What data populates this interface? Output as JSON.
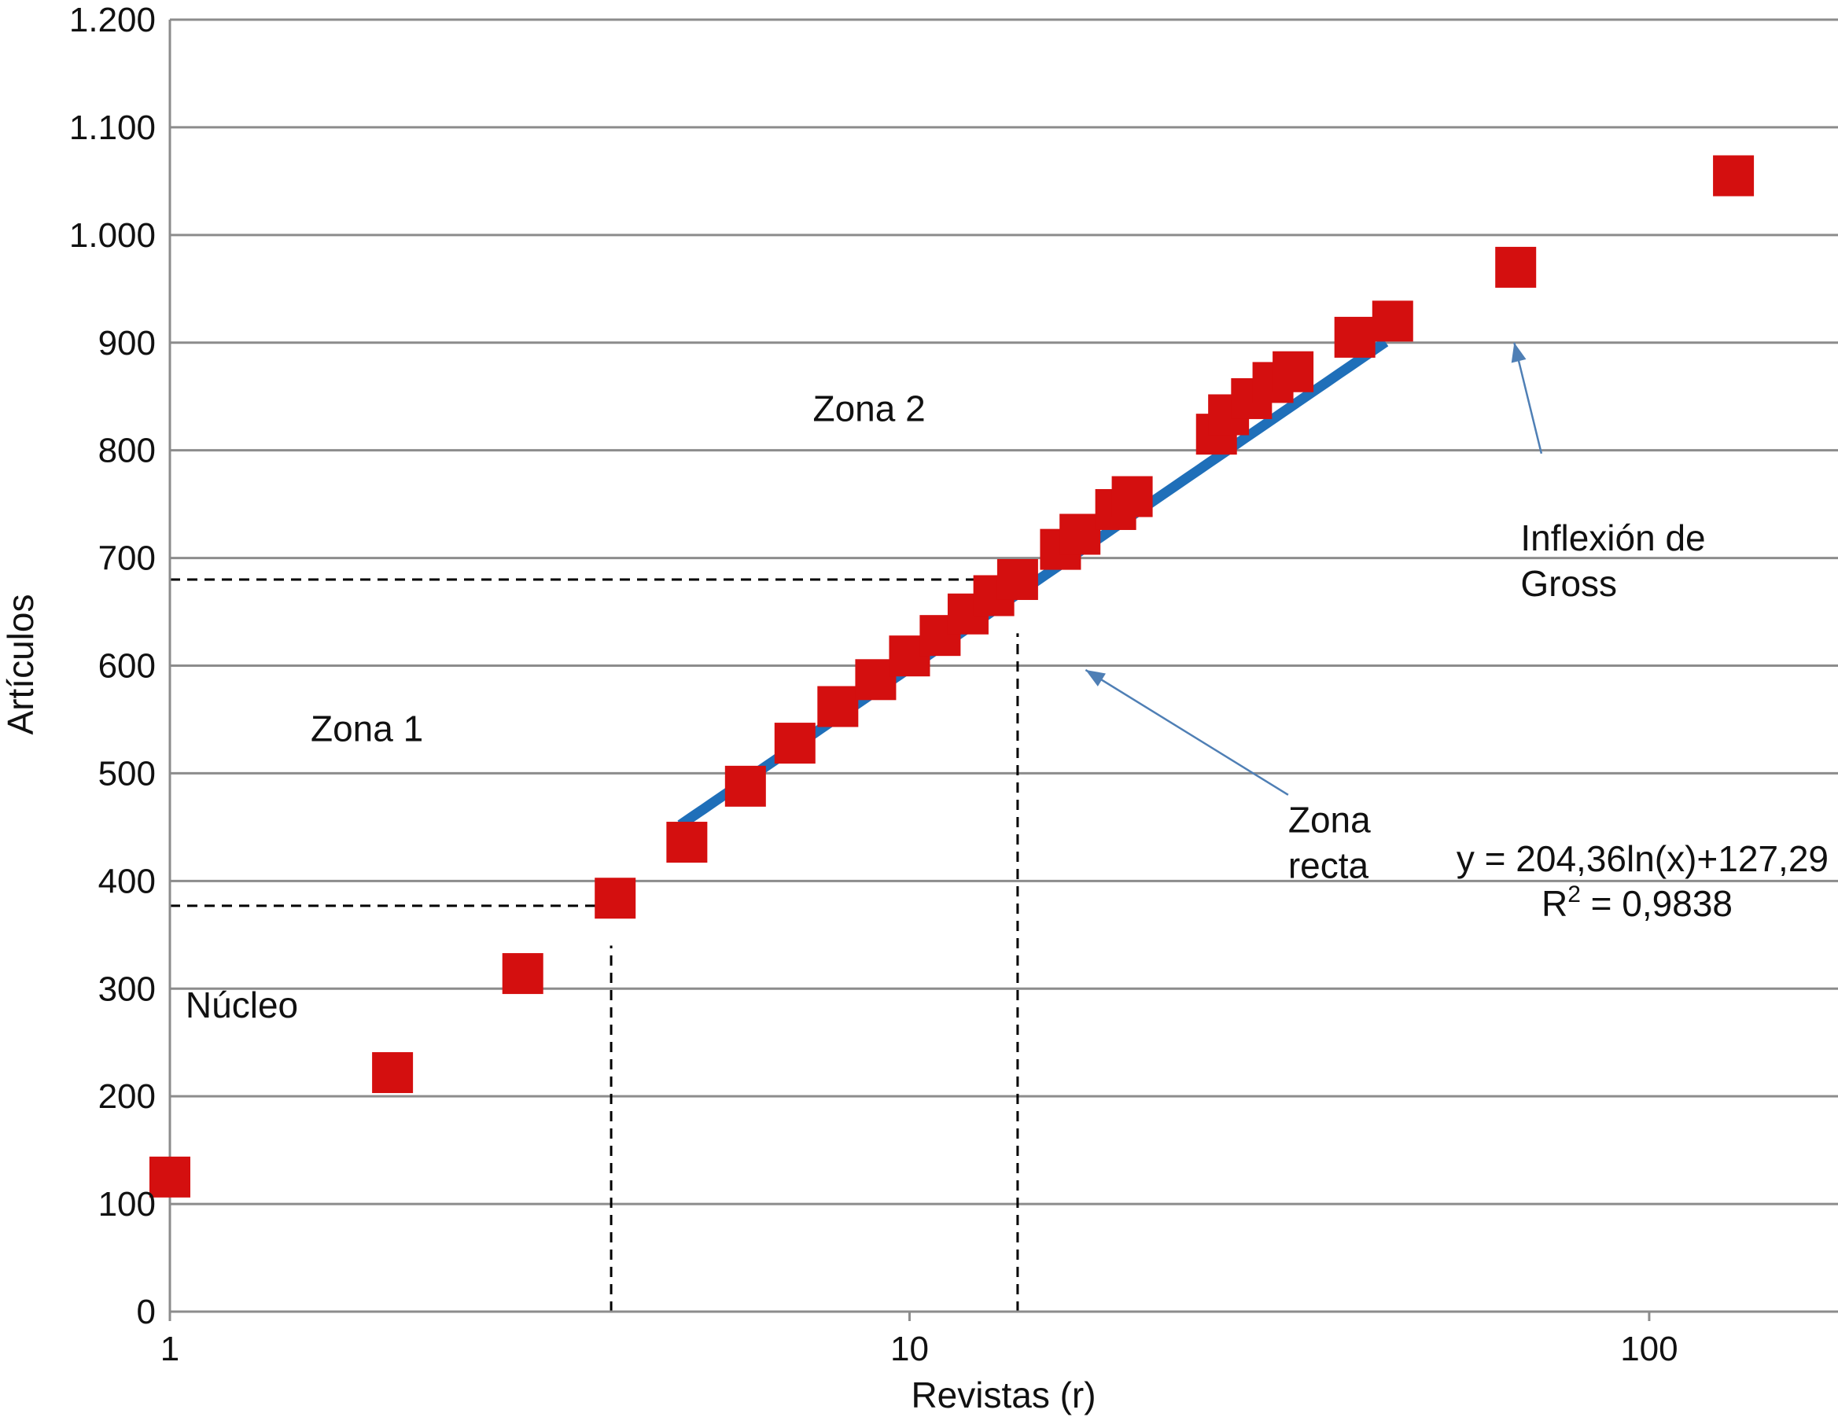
{
  "chart_data": {
    "type": "scatter",
    "title": "",
    "xlabel": "Revistas (r)",
    "ylabel": "Artículos",
    "x_scale": "log",
    "xlim": [
      1,
      180
    ],
    "ylim": [
      0,
      1200
    ],
    "x_ticks": [
      {
        "value": 1,
        "label": "1"
      },
      {
        "value": 10,
        "label": "10"
      },
      {
        "value": 100,
        "label": "100"
      }
    ],
    "y_ticks": [
      {
        "value": 0,
        "label": "0"
      },
      {
        "value": 100,
        "label": "100"
      },
      {
        "value": 200,
        "label": "200"
      },
      {
        "value": 300,
        "label": "300"
      },
      {
        "value": 400,
        "label": "400"
      },
      {
        "value": 500,
        "label": "500"
      },
      {
        "value": 600,
        "label": "600"
      },
      {
        "value": 700,
        "label": "700"
      },
      {
        "value": 800,
        "label": "800"
      },
      {
        "value": 900,
        "label": "900"
      },
      {
        "value": 1000,
        "label": "1.000"
      },
      {
        "value": 1100,
        "label": "1.100"
      },
      {
        "value": 1200,
        "label": "1.200"
      }
    ],
    "grid": {
      "horizontal": true,
      "vertical": false
    },
    "colors": {
      "points": "#d40f0f",
      "trend": "#1f6fb9",
      "arrows": "#4f7fb5",
      "grid": "#8c8c8c",
      "guides": "#000000"
    },
    "points": [
      {
        "x": 1,
        "y": 125
      },
      {
        "x": 2,
        "y": 222
      },
      {
        "x": 3,
        "y": 314
      },
      {
        "x": 4,
        "y": 384
      },
      {
        "x": 5,
        "y": 436
      },
      {
        "x": 6,
        "y": 488
      },
      {
        "x": 7,
        "y": 528
      },
      {
        "x": 8,
        "y": 562
      },
      {
        "x": 9,
        "y": 587
      },
      {
        "x": 10,
        "y": 609
      },
      {
        "x": 11,
        "y": 628
      },
      {
        "x": 12,
        "y": 648
      },
      {
        "x": 13,
        "y": 665
      },
      {
        "x": 14,
        "y": 680
      },
      {
        "x": 16,
        "y": 708
      },
      {
        "x": 17,
        "y": 722
      },
      {
        "x": 19,
        "y": 745
      },
      {
        "x": 20,
        "y": 757
      },
      {
        "x": 26,
        "y": 815
      },
      {
        "x": 27,
        "y": 833
      },
      {
        "x": 29,
        "y": 848
      },
      {
        "x": 31,
        "y": 863
      },
      {
        "x": 33,
        "y": 873
      },
      {
        "x": 40,
        "y": 905
      },
      {
        "x": 45,
        "y": 920
      },
      {
        "x": 66,
        "y": 970
      },
      {
        "x": 130,
        "y": 1055
      }
    ],
    "trendline": {
      "type": "logarithmic",
      "a": 204.36,
      "b": 127.29,
      "x_range": [
        4.9,
        44
      ],
      "equation": "y = 204,36ln(x)+127,29",
      "r2_label": "R",
      "r2_sup": "2",
      "r2_value": " = 0,9838"
    },
    "guide_lines": [
      {
        "orientation": "horizontal",
        "value": 377,
        "x_from": 1,
        "x_to": 3.9
      },
      {
        "orientation": "vertical",
        "value": 3.95,
        "y_from": 0,
        "y_to": 340
      },
      {
        "orientation": "horizontal",
        "value": 680,
        "x_from": 1,
        "x_to": 12.5
      },
      {
        "orientation": "vertical",
        "value": 14,
        "y_from": 0,
        "y_to": 630
      }
    ],
    "annotations": [
      {
        "id": "nucleo",
        "lines": [
          "Núcleo"
        ],
        "x": 1.05,
        "y": 273
      },
      {
        "id": "zona-1",
        "lines": [
          "Zona 1"
        ],
        "x": 1.55,
        "y": 530
      },
      {
        "id": "zona-2",
        "lines": [
          "Zona 2"
        ],
        "x": 7.4,
        "y": 827
      },
      {
        "id": "zona-recta",
        "lines": [
          "Zona",
          "recta"
        ],
        "x": 32.5,
        "y": 445,
        "arrow_from": {
          "x": 32.5,
          "y": 480
        },
        "arrow_to": {
          "x": 17.3,
          "y": 596
        }
      },
      {
        "id": "inflexion-gross",
        "lines": [
          "Inflexión de",
          "Gross"
        ],
        "x": 67,
        "y": 707,
        "arrow_from": {
          "x": 71.5,
          "y": 797
        },
        "arrow_to": {
          "x": 65.7,
          "y": 900
        }
      }
    ]
  }
}
